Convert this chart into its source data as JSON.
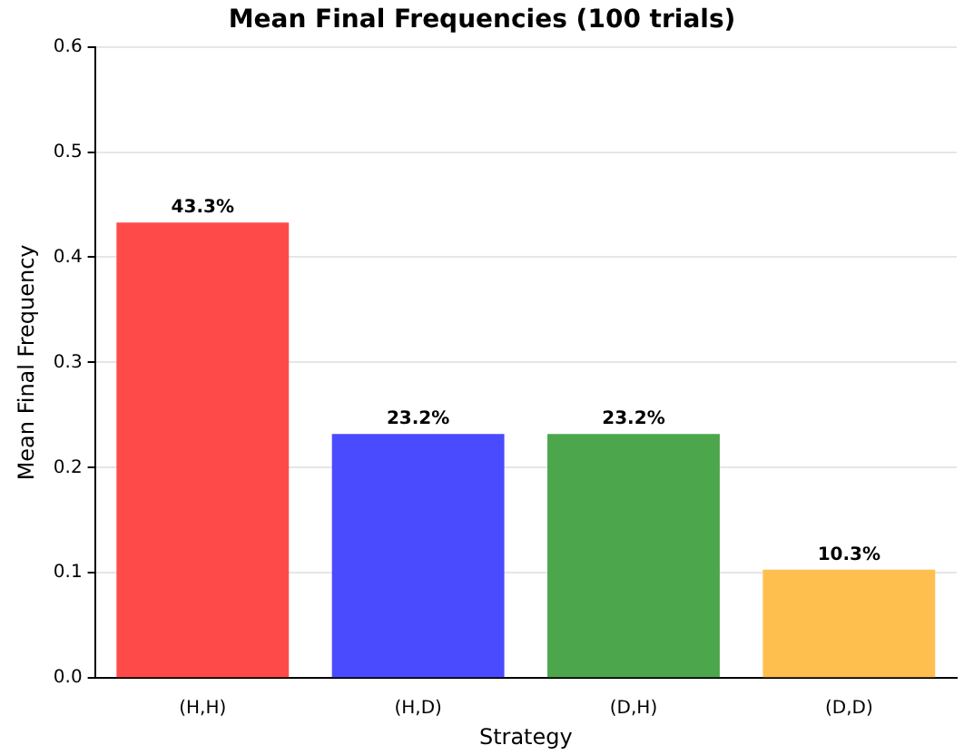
{
  "chart_data": {
    "type": "bar",
    "title": "Mean Final Frequencies (100 trials)",
    "xlabel": "Strategy",
    "ylabel": "Mean Final Frequency",
    "categories": [
      "(H,H)",
      "(H,D)",
      "(D,H)",
      "(D,D)"
    ],
    "values": [
      0.433,
      0.232,
      0.232,
      0.103
    ],
    "value_labels": [
      "43.3%",
      "23.2%",
      "23.2%",
      "10.3%"
    ],
    "colors": [
      "#ff4a4a",
      "#4a4aff",
      "#4ca64c",
      "#ffbf4f"
    ],
    "ylim": [
      0,
      0.6
    ],
    "yticks": [
      {
        "value": 0,
        "label": "0.0"
      },
      {
        "value": 0.1,
        "label": "0.1"
      },
      {
        "value": 0.2,
        "label": "0.2"
      },
      {
        "value": 0.3,
        "label": "0.3"
      },
      {
        "value": 0.4,
        "label": "0.4"
      },
      {
        "value": 0.5,
        "label": "0.5"
      },
      {
        "value": 0.6,
        "label": "0.6"
      }
    ],
    "grid": "y",
    "legend": false
  }
}
